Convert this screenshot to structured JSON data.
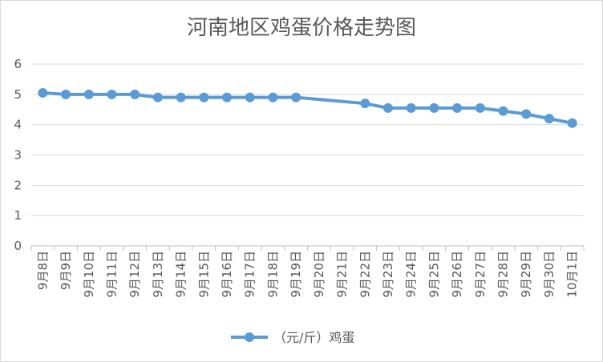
{
  "chart_data": {
    "type": "line",
    "title": "河南地区鸡蛋价格走势图",
    "categories": [
      "9月8日",
      "9月9日",
      "9月10日",
      "9月11日",
      "9月12日",
      "9月13日",
      "9月14日",
      "9月15日",
      "9月16日",
      "9月17日",
      "9月18日",
      "9月19日",
      "9月20日",
      "9月21日",
      "9月22日",
      "9月23日",
      "9月24日",
      "9月25日",
      "9月26日",
      "9月27日",
      "9月28日",
      "9月29日",
      "9月30日",
      "10月1日"
    ],
    "series": [
      {
        "name": "（元/斤）鸡蛋",
        "color": "#5b9bd5",
        "values": [
          5.05,
          5.0,
          5.0,
          5.0,
          5.0,
          4.9,
          4.9,
          4.9,
          4.9,
          4.9,
          4.9,
          4.9,
          null,
          null,
          4.7,
          4.55,
          4.55,
          4.55,
          4.55,
          4.55,
          4.45,
          4.35,
          4.2,
          4.05
        ]
      }
    ],
    "yticks": [
      "0",
      "1",
      "2",
      "3",
      "4",
      "5",
      "6"
    ],
    "ylim": [
      0,
      6
    ],
    "grid": true,
    "legend": "bottom"
  }
}
